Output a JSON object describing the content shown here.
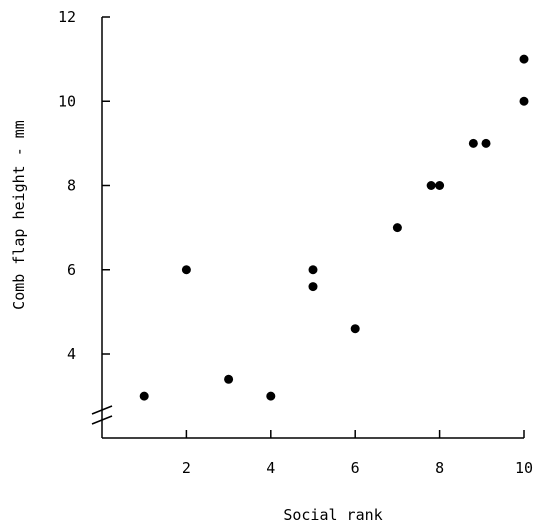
{
  "chart_data": {
    "type": "scatter",
    "title": "",
    "xlabel": "Social rank",
    "ylabel": "Comb flap height - mm",
    "xlim": [
      0,
      10
    ],
    "ylim": [
      2,
      12
    ],
    "x_ticks": [
      2,
      4,
      6,
      8,
      10
    ],
    "y_ticks": [
      4,
      6,
      8,
      10,
      12
    ],
    "y_axis_break": true,
    "grid": false,
    "legend": "none",
    "series": [
      {
        "x": [
          1,
          2,
          3,
          4,
          5,
          5,
          6,
          7,
          7.8,
          8,
          8.8,
          9.1,
          10,
          10
        ],
        "y": [
          3.0,
          6.0,
          3.4,
          3.0,
          6.0,
          5.6,
          4.6,
          7.0,
          8.0,
          8.0,
          9.0,
          9.0,
          10.0,
          11.0
        ]
      }
    ],
    "colors": {
      "points": "#000000",
      "axes": "#000000"
    }
  }
}
